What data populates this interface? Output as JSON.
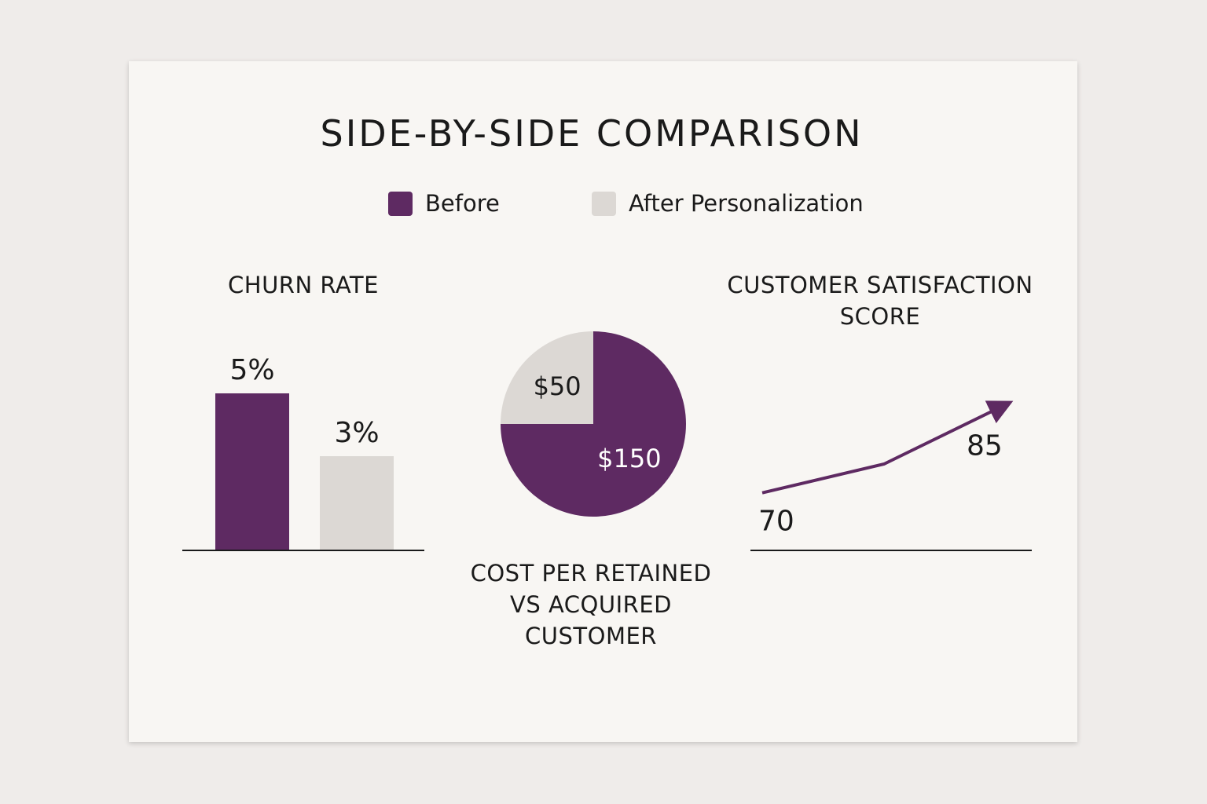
{
  "title": "SIDE-BY-SIDE COMPARISON",
  "chart_data": [
    {
      "type": "bar",
      "title": "CHURN RATE",
      "series": [
        {
          "name": "Before",
          "color": "#5e2a62",
          "values": [
            5
          ],
          "value_labels": [
            "5%"
          ]
        },
        {
          "name": "After Personalization",
          "color": "#dcd8d4",
          "values": [
            3
          ],
          "value_labels": [
            "3%"
          ]
        }
      ],
      "ylim": [
        0,
        5
      ]
    },
    {
      "type": "pie",
      "title": "COST PER RETAINED VS ACQUIRED CUSTOMER",
      "values": [
        150,
        50
      ],
      "value_labels": [
        "$150",
        "$50"
      ],
      "colors": [
        "#5e2a62",
        "#dcd8d4"
      ]
    },
    {
      "type": "line",
      "title": "CUSTOMER SATISFACTION SCORE",
      "categories": [
        null,
        null,
        null
      ],
      "values": [
        70,
        75,
        85
      ],
      "color": "#5e2a62",
      "ylim": [
        60,
        90
      ]
    }
  ]
}
